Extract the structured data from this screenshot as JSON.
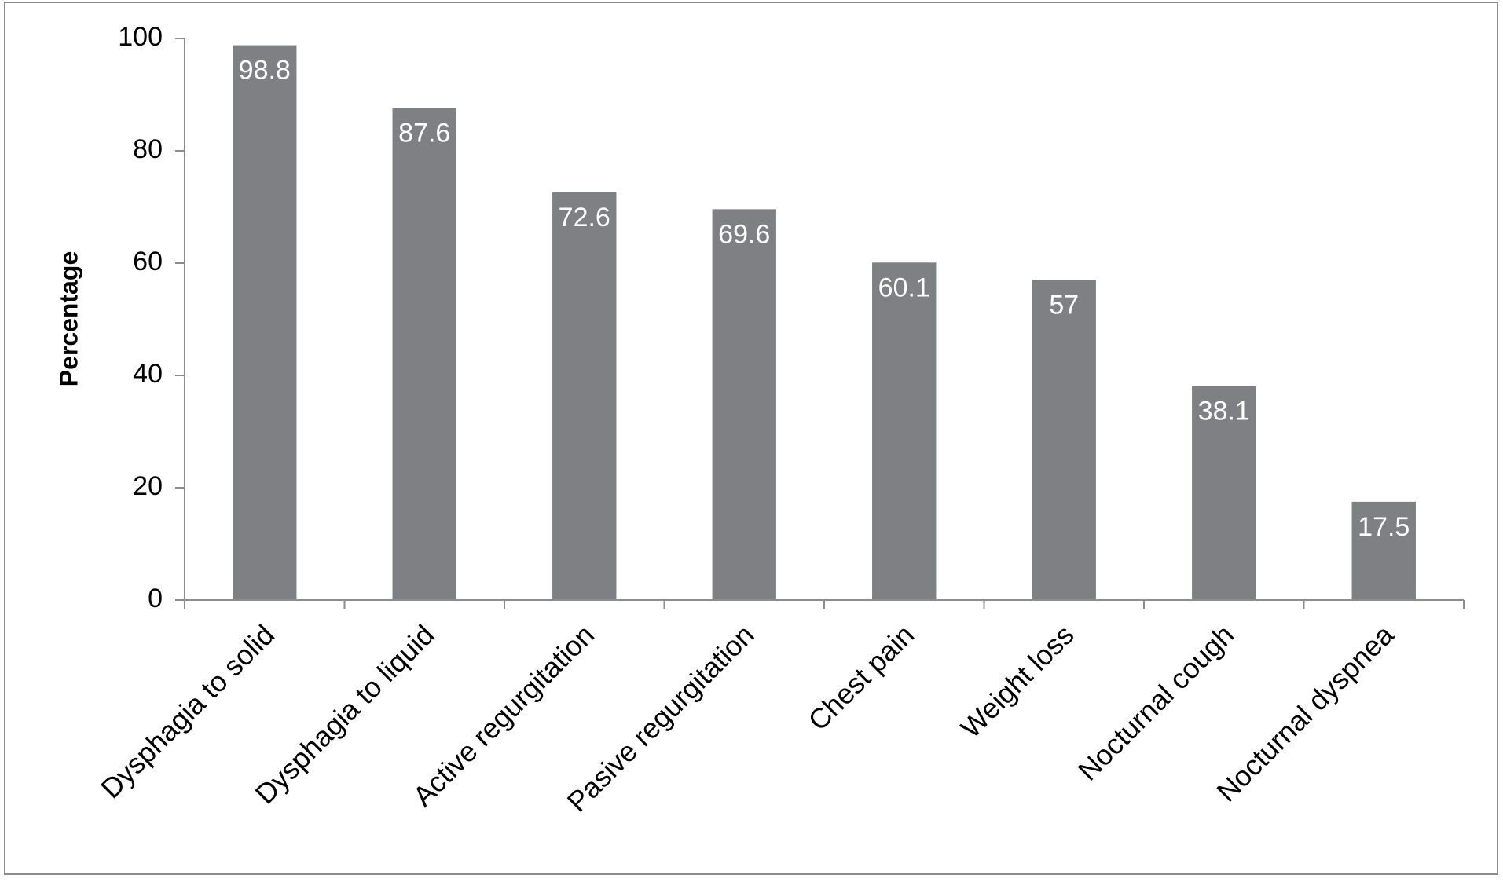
{
  "chart_data": {
    "type": "bar",
    "y_label": "Percentage",
    "categories": [
      "Dysphagia to solid",
      "Dysphagia to liquid",
      "Active regurgitation",
      "Pasive regurgitation",
      "Chest pain",
      "Weight loss",
      "Nocturnal cough",
      "Nocturnal dyspnea"
    ],
    "values": [
      98.8,
      87.6,
      72.6,
      69.6,
      60.1,
      57,
      38.1,
      17.5
    ],
    "color": "#7f8083",
    "ylim": [
      0,
      100
    ],
    "yticks": [
      0,
      20,
      40,
      60,
      80,
      100
    ],
    "grid": false
  }
}
